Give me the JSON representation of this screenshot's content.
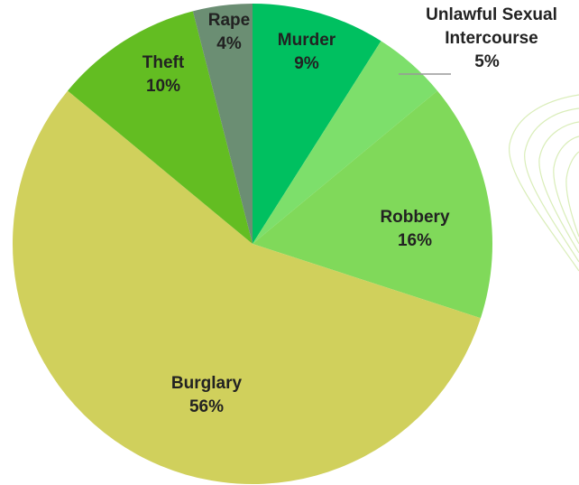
{
  "chart_data": {
    "type": "pie",
    "categories": [
      "Murder",
      "Unlawful Sexual Intercourse",
      "Robbery",
      "Burglary",
      "Theft",
      "Rape"
    ],
    "values": [
      9,
      5,
      16,
      56,
      10,
      4
    ],
    "value_labels": [
      "9%",
      "5%",
      "16%",
      "56%",
      "10%",
      "4%"
    ],
    "colors": [
      "#00c060",
      "#7ddf6b",
      "#80d95a",
      "#d0d05c",
      "#63bd22",
      "#6b8e73"
    ],
    "label_lines": [
      [
        "Murder"
      ],
      [
        "Unlawful Sexual",
        "Intercourse"
      ],
      [
        "Robbery"
      ],
      [
        "Burglary"
      ],
      [
        "Theft"
      ],
      [
        "Rape"
      ]
    ],
    "start": "top",
    "direction": "clockwise",
    "legend": "none"
  }
}
